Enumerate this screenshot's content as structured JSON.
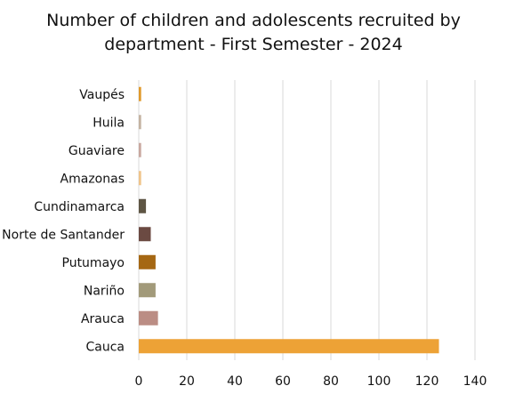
{
  "chart_data": {
    "type": "bar",
    "orientation": "horizontal",
    "title_lines": [
      "Number of children and adolescents recruited by",
      "department - First Semester - 2024"
    ],
    "categories": [
      "Vaupés",
      "Huila",
      "Guaviare",
      "Amazonas",
      "Cundinamarca",
      "Norte de Santander",
      "Putumayo",
      "Nariño",
      "Arauca",
      "Cauca"
    ],
    "values": [
      1,
      1,
      1,
      1,
      3,
      5,
      7,
      7,
      8,
      125
    ],
    "bar_colors": [
      "#E09A2C",
      "#C4B3A2",
      "#C9A8A0",
      "#F0C48A",
      "#5E5544",
      "#6B4A42",
      "#A56713",
      "#A29A7A",
      "#BB8D84",
      "#EDA236"
    ],
    "xlim": [
      0,
      140
    ],
    "xticks": [
      0,
      20,
      40,
      60,
      80,
      100,
      120,
      140
    ],
    "grid": "vertical",
    "gridline_color": "#d9d9d9"
  }
}
